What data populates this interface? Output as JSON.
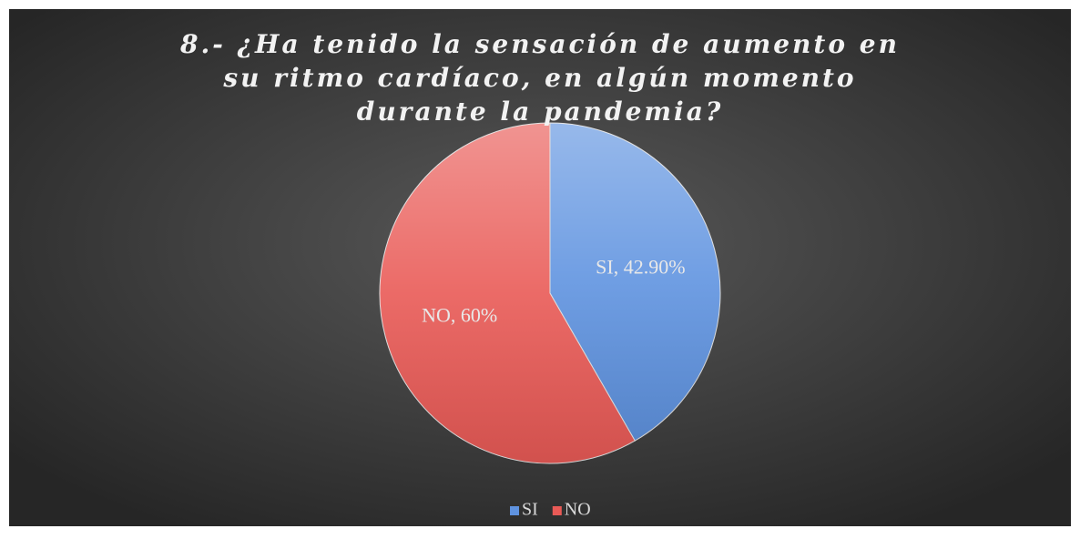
{
  "chart_data": {
    "type": "pie",
    "title": "8.- ¿Ha tenido la sensación de aumento en su ritmo cardíaco, en algún momento durante la pandemia?",
    "categories": [
      "SI",
      "NO"
    ],
    "values": [
      42.9,
      60
    ],
    "value_labels": [
      "SI, 42.90%",
      "NO, 60%"
    ],
    "colors": [
      "#5f93e0",
      "#e95a56"
    ],
    "legend": "bottom"
  }
}
